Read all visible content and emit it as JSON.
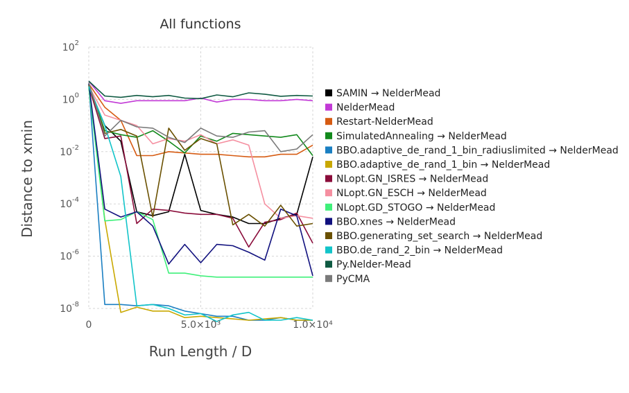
{
  "chart_data": {
    "type": "line",
    "title": "All functions",
    "xlabel": "Run Length / D",
    "ylabel": "Distance to xmin",
    "y_scale": "log",
    "xlim": [
      0,
      10000
    ],
    "ylim_exponents": [
      -8,
      2
    ],
    "grid": true,
    "legend_position": "right",
    "x_ticks": [
      {
        "value": 0,
        "label": "0"
      },
      {
        "value": 5000,
        "label": "5.0×10³"
      },
      {
        "value": 10000,
        "label": "1.0×10⁴"
      }
    ],
    "y_ticks": [
      {
        "exp": 2,
        "base": "10",
        "sup": "2"
      },
      {
        "exp": 0,
        "base": "10",
        "sup": "0"
      },
      {
        "exp": -2,
        "base": "10",
        "sup": "-2"
      },
      {
        "exp": -4,
        "base": "10",
        "sup": "-4"
      },
      {
        "exp": -6,
        "base": "10",
        "sup": "-6"
      },
      {
        "exp": -8,
        "base": "10",
        "sup": "-8"
      }
    ],
    "x": [
      0,
      714,
      1429,
      2143,
      2857,
      3571,
      4286,
      5000,
      5714,
      6429,
      7143,
      7857,
      8571,
      9286,
      10000
    ],
    "series": [
      {
        "name": "SAMIN → NelderMead",
        "color": "#000000",
        "log10_values": [
          0.5,
          -1.0,
          -1.6,
          -4.3,
          -4.45,
          -4.3,
          -2.1,
          -4.25,
          -4.4,
          -4.5,
          -4.75,
          -4.75,
          -4.55,
          -4.4,
          -2.2
        ]
      },
      {
        "name": "NelderMead",
        "color": "#c23ad6",
        "log10_values": [
          0.7,
          -0.05,
          -0.15,
          -0.05,
          -0.05,
          -0.05,
          -0.05,
          0.05,
          -0.1,
          0.0,
          0.0,
          -0.05,
          -0.05,
          0.0,
          -0.05
        ]
      },
      {
        "name": "Restart-NelderMead",
        "color": "#d65b12",
        "log10_values": [
          0.6,
          -0.3,
          -0.8,
          -2.15,
          -2.15,
          -2.0,
          -2.05,
          -2.1,
          -2.1,
          -2.15,
          -2.2,
          -2.2,
          -2.1,
          -2.1,
          -1.75
        ]
      },
      {
        "name": "SimulatedAnnealing → NelderMead",
        "color": "#12891c",
        "log10_values": [
          0.55,
          -1.2,
          -1.35,
          -1.45,
          -1.2,
          -1.6,
          -2.05,
          -1.4,
          -1.6,
          -1.3,
          -1.35,
          -1.4,
          -1.45,
          -1.35,
          -2.15
        ]
      },
      {
        "name": "BBO.adaptive_de_rand_1_bin_radiuslimited → NelderMead",
        "color": "#1a7fc2",
        "log10_values": [
          0.6,
          -7.85,
          -7.85,
          -7.9,
          -7.85,
          -7.9,
          -8.1,
          -8.2,
          -8.3,
          -8.3,
          -8.45,
          -8.45,
          -8.35,
          -8.45,
          -8.45
        ]
      },
      {
        "name": "BBO.adaptive_de_rand_1_bin → NelderMead",
        "color": "#c9a800",
        "log10_values": [
          0.55,
          -4.6,
          -8.15,
          -7.95,
          -8.1,
          -8.1,
          -8.35,
          -8.3,
          -8.35,
          -8.4,
          -8.45,
          -8.4,
          -8.35,
          -8.45,
          -8.45
        ]
      },
      {
        "name": "NLopt.GN_ISRES → NelderMead",
        "color": "#8a0c3a",
        "log10_values": [
          0.5,
          -1.5,
          -1.4,
          -4.75,
          -4.2,
          -4.25,
          -4.35,
          -4.4,
          -4.4,
          -4.55,
          -5.65,
          -4.7,
          -4.6,
          -4.35,
          -5.5
        ]
      },
      {
        "name": "NLopt.GN_ESCH → NelderMead",
        "color": "#f58fa0",
        "log10_values": [
          0.5,
          -0.6,
          -0.8,
          -1.0,
          -1.7,
          -1.5,
          -1.6,
          -1.35,
          -1.7,
          -1.55,
          -1.75,
          -4.0,
          -4.55,
          -4.45,
          -4.55
        ]
      },
      {
        "name": "NLopt.GD_STOGO → NelderMead",
        "color": "#3ff07a",
        "log10_values": [
          0.45,
          -4.65,
          -4.6,
          -4.3,
          -4.6,
          -6.65,
          -6.65,
          -6.75,
          -6.8,
          -6.8,
          -6.8,
          -6.8,
          -6.8,
          -6.8,
          -6.8
        ]
      },
      {
        "name": "BBO.xnes → NelderMead",
        "color": "#10107e",
        "log10_values": [
          0.6,
          -4.2,
          -4.5,
          -4.3,
          -4.85,
          -6.3,
          -5.55,
          -6.25,
          -5.55,
          -5.6,
          -5.85,
          -6.15,
          -4.2,
          -4.45,
          -6.75
        ]
      },
      {
        "name": "BBO.generating_set_search → NelderMead",
        "color": "#6a5000",
        "log10_values": [
          0.55,
          -1.3,
          -1.15,
          -1.4,
          -4.5,
          -1.1,
          -1.95,
          -1.5,
          -1.7,
          -4.8,
          -4.4,
          -4.85,
          -4.05,
          -4.85,
          -4.75
        ]
      },
      {
        "name": "BBO.de_rand_2_bin → NelderMead",
        "color": "#12c4c9",
        "log10_values": [
          0.5,
          -1.0,
          -2.95,
          -7.9,
          -7.85,
          -8.0,
          -8.25,
          -8.2,
          -8.5,
          -8.25,
          -8.15,
          -8.45,
          -8.45,
          -8.35,
          -8.45
        ]
      },
      {
        "name": "Py.Nelder-Mead",
        "color": "#0f5a42",
        "log10_values": [
          0.7,
          0.13,
          0.08,
          0.15,
          0.1,
          0.15,
          0.05,
          0.03,
          0.17,
          0.1,
          0.25,
          0.2,
          0.12,
          0.15,
          0.13
        ]
      },
      {
        "name": "PyCMA",
        "color": "#7a7a7a",
        "log10_values": [
          0.65,
          -1.4,
          -0.8,
          -1.05,
          -1.1,
          -1.45,
          -1.65,
          -1.1,
          -1.4,
          -1.45,
          -1.25,
          -1.2,
          -2.0,
          -1.9,
          -1.35
        ]
      }
    ]
  }
}
